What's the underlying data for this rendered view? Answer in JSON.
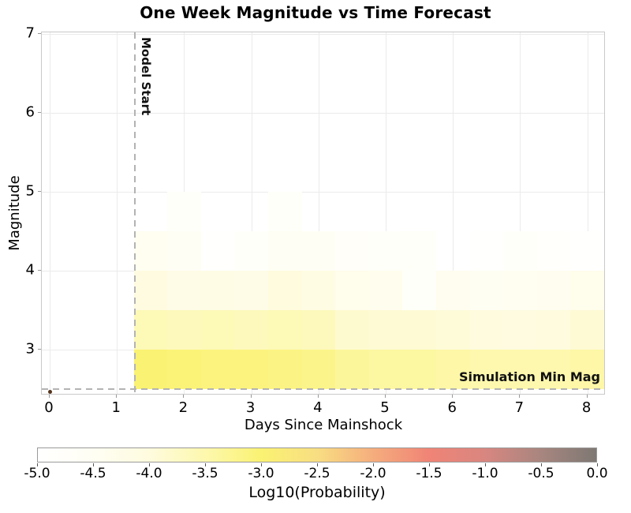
{
  "chart_data": {
    "type": "heatmap",
    "title": "One Week Magnitude vs Time Forecast",
    "xlabel": "Days Since Mainshock",
    "ylabel": "Magnitude",
    "xlim": [
      -0.12,
      8.27
    ],
    "ylim": [
      2.42,
      7.02
    ],
    "x_ticks": [
      0,
      1,
      2,
      3,
      4,
      5,
      6,
      7,
      8
    ],
    "y_ticks": [
      3,
      4,
      5,
      6,
      7
    ],
    "grid": "on",
    "bin_width_days": 0.5,
    "bin_height_mag": 0.5,
    "first_bin_start_day": 1.25,
    "rows": [
      {
        "mag_range": [
          4.5,
          5.0
        ],
        "log10_prob": [
          -5.0,
          -4.75,
          -5.0,
          -5.0,
          -4.8,
          -5.0,
          -5.0,
          -5.0,
          -5.0,
          -5.0,
          -5.0,
          -5.0,
          -5.0,
          -5.0
        ]
      },
      {
        "mag_range": [
          4.0,
          4.5
        ],
        "log10_prob": [
          -4.45,
          -4.6,
          -4.9,
          -4.8,
          -4.55,
          -4.6,
          -4.7,
          -4.8,
          -4.75,
          -5.0,
          -4.9,
          -4.8,
          -4.85,
          -4.95
        ]
      },
      {
        "mag_range": [
          3.5,
          4.0
        ],
        "log10_prob": [
          -4.05,
          -4.2,
          -4.15,
          -4.2,
          -4.0,
          -4.1,
          -4.3,
          -4.35,
          -4.75,
          -4.4,
          -4.5,
          -4.45,
          -4.4,
          -4.3
        ]
      },
      {
        "mag_range": [
          3.0,
          3.5
        ],
        "log10_prob": [
          -3.6,
          -3.65,
          -3.6,
          -3.65,
          -3.6,
          -3.65,
          -3.85,
          -3.9,
          -3.9,
          -3.95,
          -4.0,
          -4.05,
          -4.0,
          -3.9
        ]
      },
      {
        "mag_range": [
          2.5,
          3.0
        ],
        "log10_prob": [
          -3.0,
          -3.05,
          -3.1,
          -3.1,
          -3.15,
          -3.2,
          -3.35,
          -3.4,
          -3.4,
          -3.45,
          -3.5,
          -3.5,
          -3.5,
          -3.45
        ]
      }
    ],
    "vline": {
      "label": "Model Start",
      "x": 1.27,
      "style": "dashed",
      "color": "#b3b3b3"
    },
    "hline": {
      "label": "Simulation Min Mag",
      "y": 2.5,
      "style": "dashed",
      "color": "#b3b3b3"
    },
    "mainshock_point": {
      "day": 0,
      "magnitude": 2.47,
      "color": "#54341d"
    },
    "colorbar": {
      "label": "Log10(Probability)",
      "tick_labels": [
        "-5.0",
        "-4.5",
        "-4.0",
        "-3.5",
        "-3.0",
        "-2.5",
        "-2.0",
        "-1.5",
        "-1.0",
        "-0.5",
        "0.0"
      ],
      "range": [
        -5.0,
        0.0
      ],
      "stops": [
        {
          "v": -5.0,
          "c": "#ffffff"
        },
        {
          "v": -4.5,
          "c": "#fffef3"
        },
        {
          "v": -4.0,
          "c": "#fefbde"
        },
        {
          "v": -3.5,
          "c": "#fdf8ad"
        },
        {
          "v": -3.0,
          "c": "#faf272"
        },
        {
          "v": -2.5,
          "c": "#f8de82"
        },
        {
          "v": -2.0,
          "c": "#f5ad7d"
        },
        {
          "v": -1.5,
          "c": "#f08476"
        },
        {
          "v": -1.0,
          "c": "#d98680"
        },
        {
          "v": -0.5,
          "c": "#a8867f"
        },
        {
          "v": 0.0,
          "c": "#7e7873"
        }
      ]
    }
  }
}
